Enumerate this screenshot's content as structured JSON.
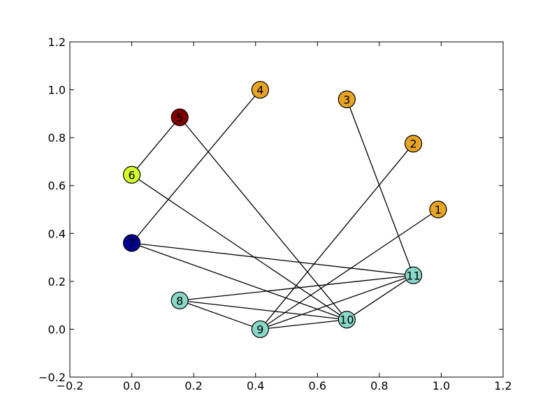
{
  "chart_data": {
    "type": "network_graph",
    "title": "",
    "xlabel": "",
    "ylabel": "",
    "xlim": [
      -0.2,
      1.2
    ],
    "ylim": [
      -0.2,
      1.2
    ],
    "x_ticks": [
      -0.2,
      0.0,
      0.2,
      0.4,
      0.6,
      0.8,
      1.0,
      1.2
    ],
    "y_ticks": [
      -0.2,
      0.0,
      0.2,
      0.4,
      0.6,
      0.8,
      1.0,
      1.2
    ],
    "x_tick_labels": [
      "−0.2",
      "0.0",
      "0.2",
      "0.4",
      "0.6",
      "0.8",
      "1.0",
      "1.2"
    ],
    "y_tick_labels": [
      "−0.2",
      "0.0",
      "0.2",
      "0.4",
      "0.6",
      "0.8",
      "1.0",
      "1.2"
    ],
    "grid": false,
    "nodes": [
      {
        "id": "1",
        "label": "1",
        "x": 0.99,
        "y": 0.5,
        "color": "#e8a424"
      },
      {
        "id": "2",
        "label": "2",
        "x": 0.91,
        "y": 0.775,
        "color": "#e8a424"
      },
      {
        "id": "3",
        "label": "3",
        "x": 0.695,
        "y": 0.96,
        "color": "#e8a424"
      },
      {
        "id": "4",
        "label": "4",
        "x": 0.415,
        "y": 1.0,
        "color": "#e8a424"
      },
      {
        "id": "5",
        "label": "5",
        "x": 0.155,
        "y": 0.885,
        "color": "#800000"
      },
      {
        "id": "6",
        "label": "6",
        "x": 0.0,
        "y": 0.645,
        "color": "#d4fc2c"
      },
      {
        "id": "7",
        "label": "7",
        "x": 0.0,
        "y": 0.36,
        "color": "#00008f"
      },
      {
        "id": "8",
        "label": "8",
        "x": 0.155,
        "y": 0.12,
        "color": "#88d7c7"
      },
      {
        "id": "9",
        "label": "9",
        "x": 0.415,
        "y": 0.0,
        "color": "#88d7c7"
      },
      {
        "id": "10",
        "label": "10",
        "x": 0.695,
        "y": 0.04,
        "color": "#88d7c7"
      },
      {
        "id": "11",
        "label": "11",
        "x": 0.91,
        "y": 0.225,
        "color": "#88d7c7"
      }
    ],
    "edges": [
      [
        "1",
        "9"
      ],
      [
        "2",
        "9"
      ],
      [
        "3",
        "11"
      ],
      [
        "4",
        "7"
      ],
      [
        "5",
        "6"
      ],
      [
        "5",
        "10"
      ],
      [
        "6",
        "10"
      ],
      [
        "7",
        "11"
      ],
      [
        "7",
        "10"
      ],
      [
        "8",
        "11"
      ],
      [
        "8",
        "10"
      ],
      [
        "8",
        "9"
      ],
      [
        "9",
        "11"
      ],
      [
        "9",
        "10"
      ],
      [
        "10",
        "11"
      ]
    ]
  }
}
